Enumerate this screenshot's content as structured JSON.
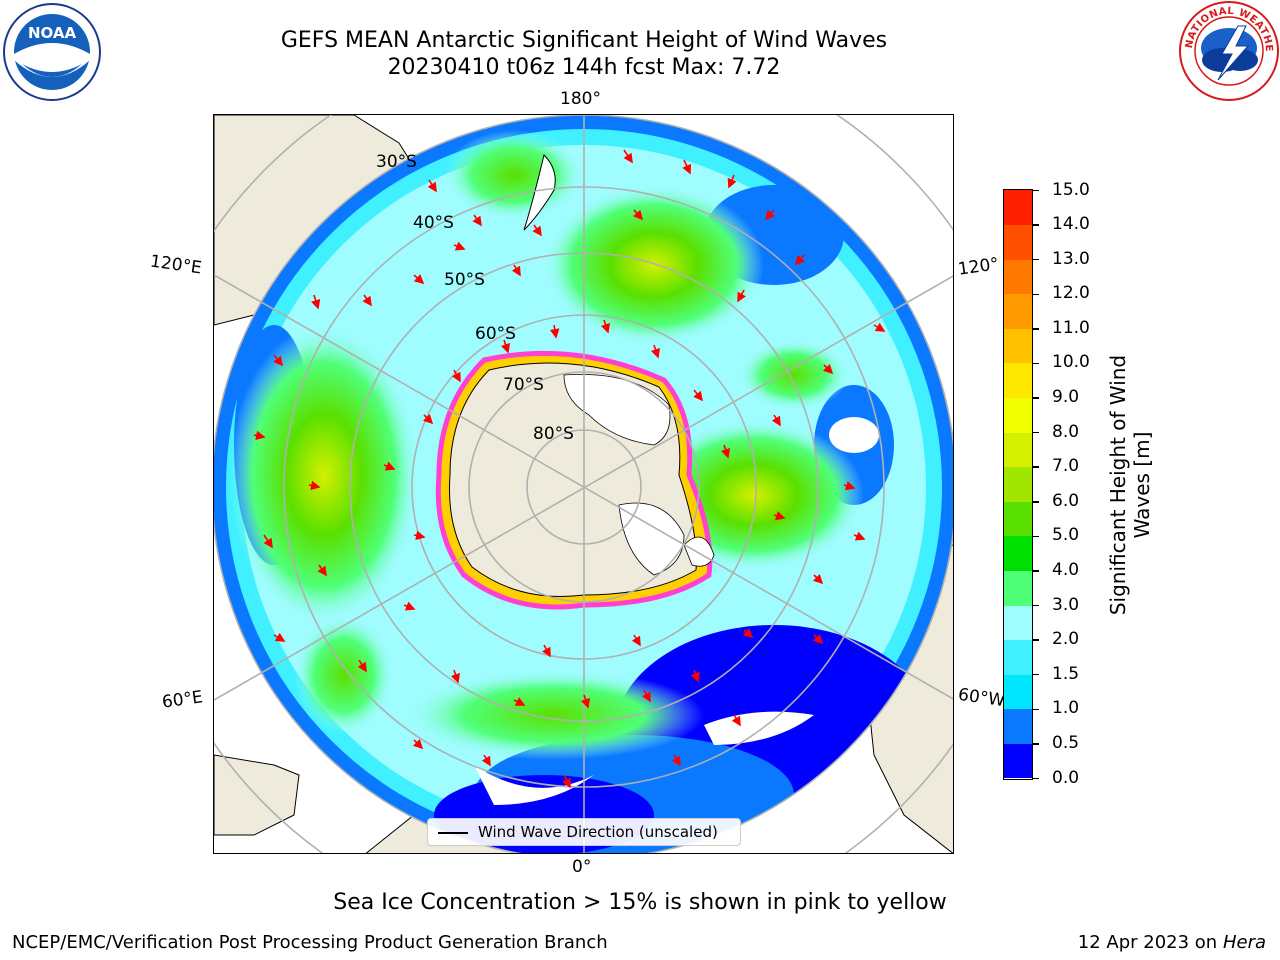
{
  "title": {
    "line1": "GEFS MEAN Antarctic Significant Height of Wind Waves",
    "line2": "20230410 t06z 144h fcst   Max: 7.72"
  },
  "map": {
    "longitude_labels": {
      "top": "180°",
      "bottom": "0°",
      "left_upper": "120°E",
      "left_lower": "60°E",
      "right_upper": "120°",
      "right_lower": "60°W"
    },
    "latitude_labels": [
      "30°S",
      "40°S",
      "50°S",
      "60°S",
      "70°S",
      "80°S"
    ],
    "legend_text": "Wind Wave Direction (unscaled)"
  },
  "colorbar": {
    "label": "Significant Height of Wind Waves [m]",
    "ticks": [
      "0.0",
      "0.5",
      "1.0",
      "1.5",
      "2.0",
      "3.0",
      "4.0",
      "5.0",
      "6.0",
      "7.0",
      "8.0",
      "9.0",
      "10.0",
      "11.0",
      "12.0",
      "13.0",
      "14.0",
      "15.0"
    ],
    "colors": [
      "#0000ff",
      "#0a78ff",
      "#00e6ff",
      "#40f0ff",
      "#9ffcff",
      "#50ff78",
      "#00e000",
      "#5ae000",
      "#a0e600",
      "#d4f000",
      "#f0ff00",
      "#ffe800",
      "#ffc000",
      "#ff9a00",
      "#ff7800",
      "#ff5000",
      "#ff2000"
    ]
  },
  "note": "Sea Ice Concentration > 15% is shown in pink to yellow",
  "footer": {
    "left": "NCEP/EMC/Verification Post Processing Product Generation Branch",
    "right_date": "12 Apr 2023 on ",
    "right_host": "Hera"
  },
  "logos": {
    "left": "NOAA",
    "right": "NATIONAL WEATHER SERVICE"
  }
}
